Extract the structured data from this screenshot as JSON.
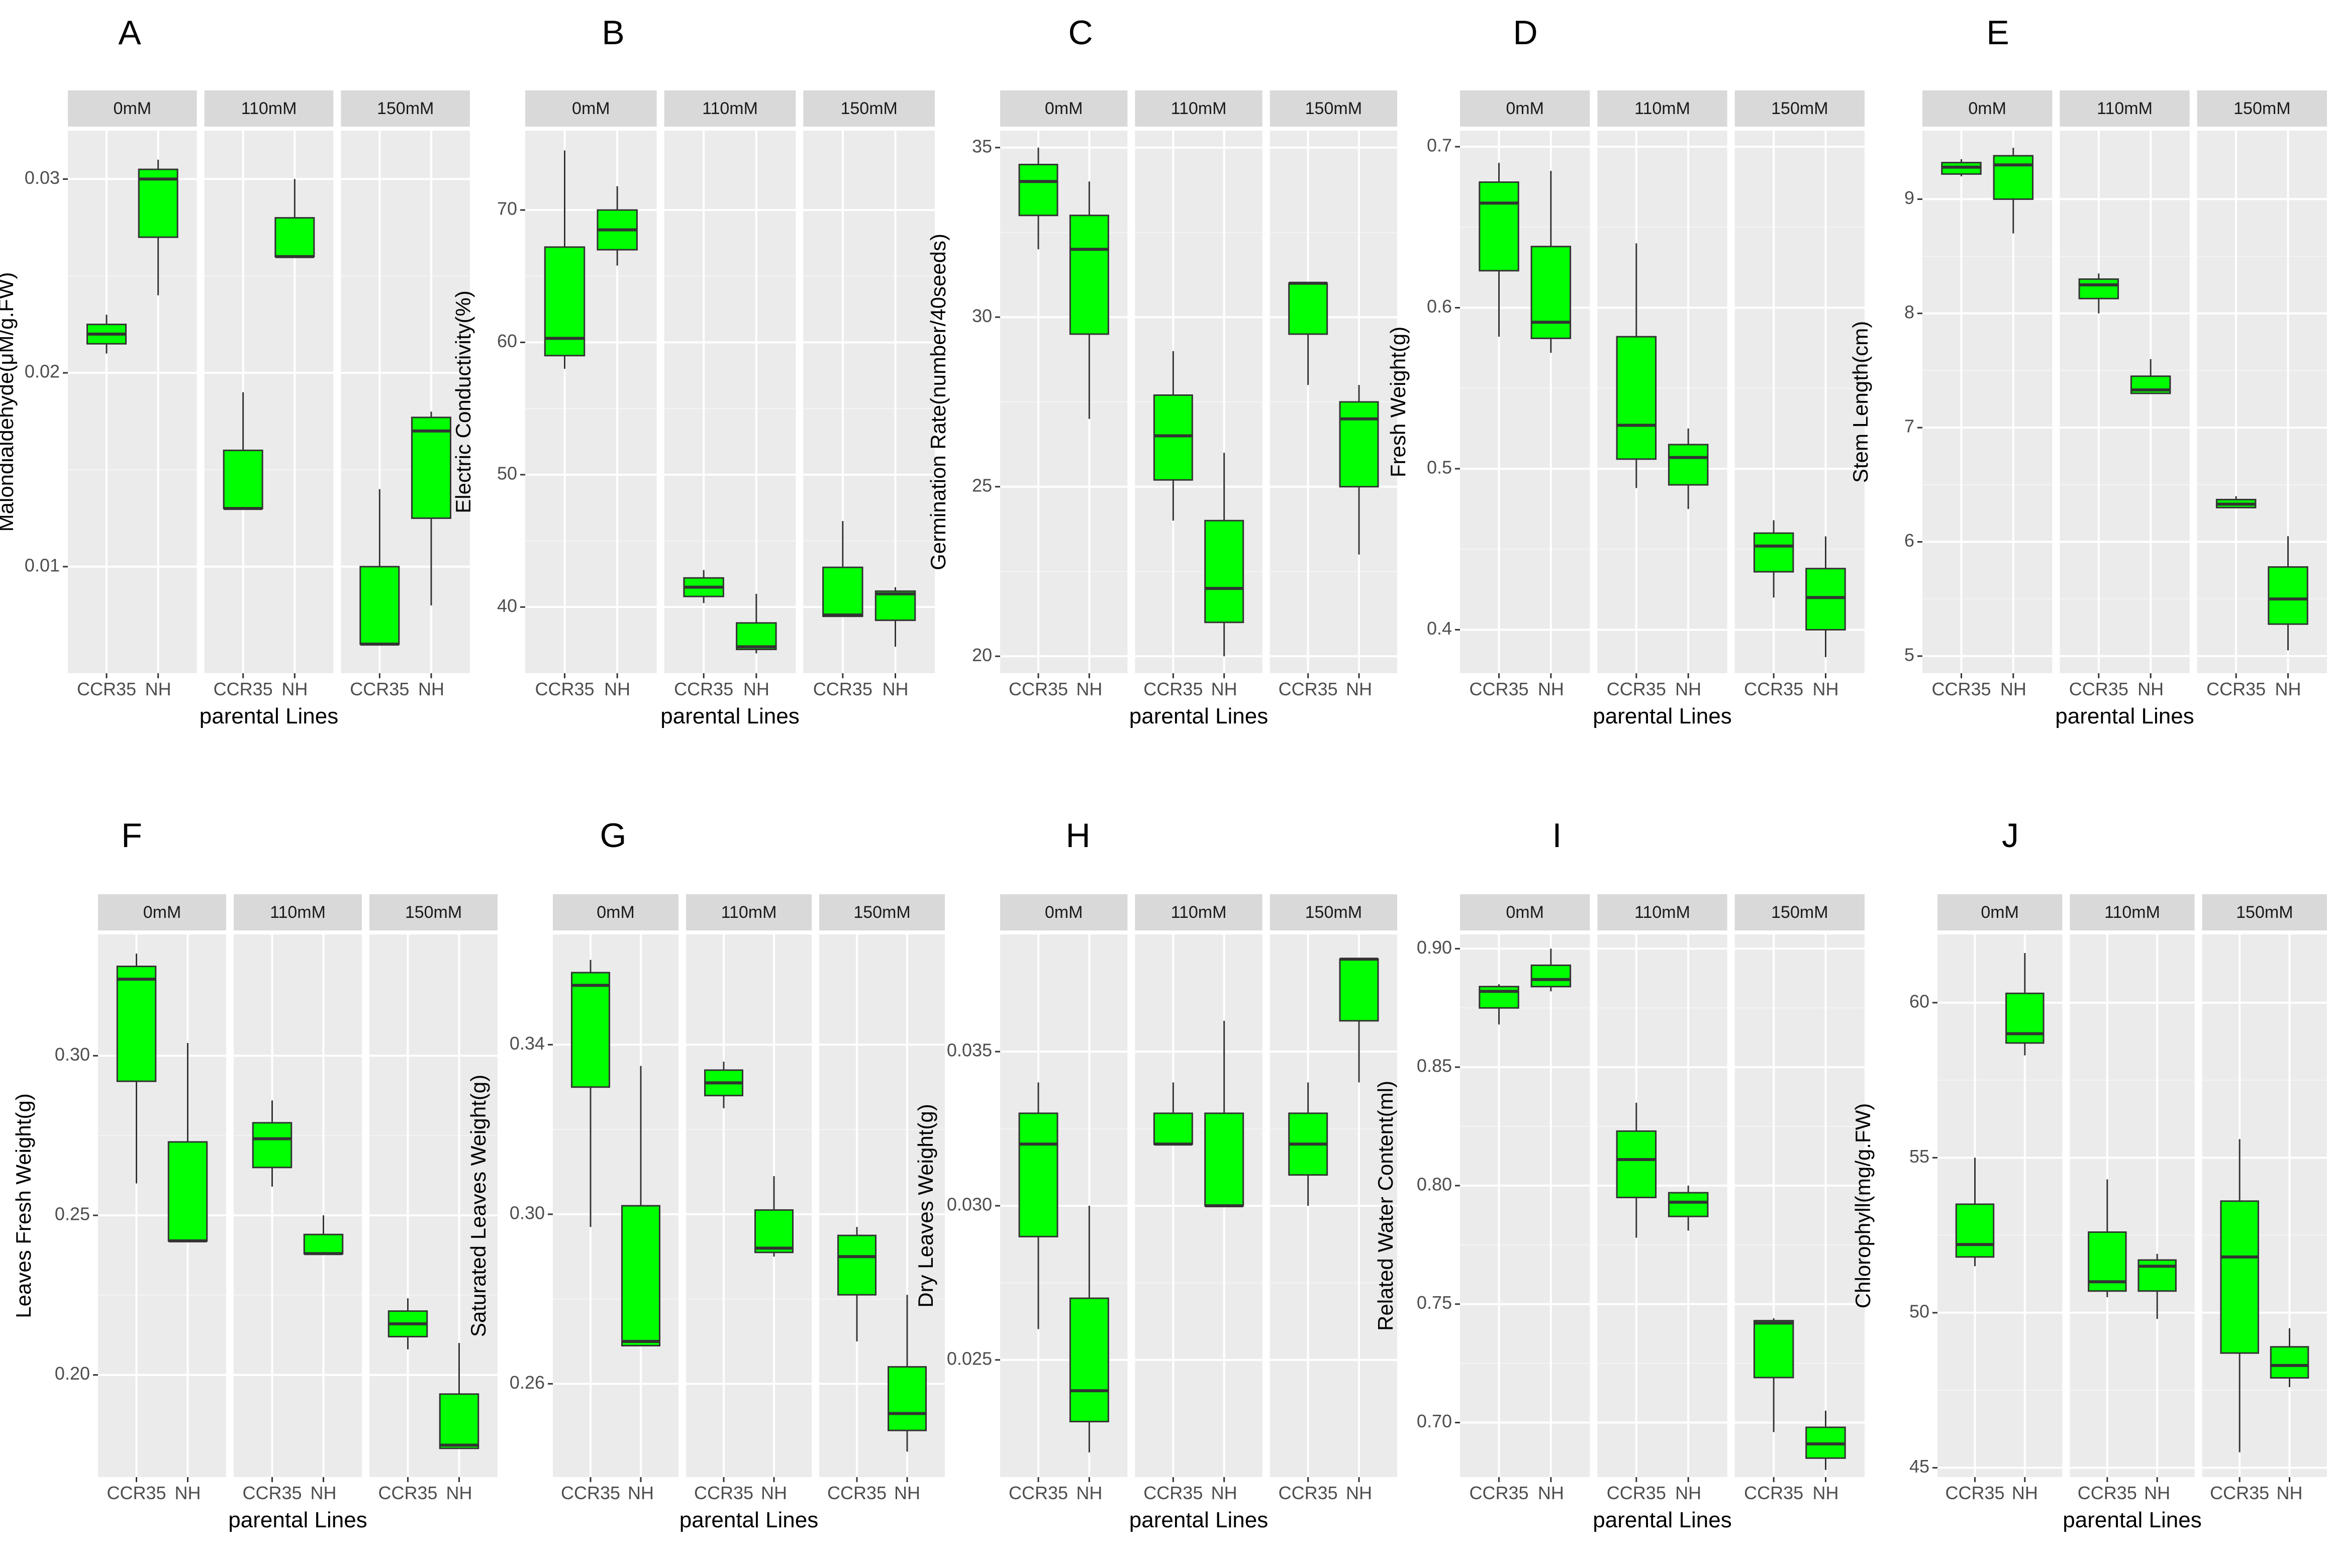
{
  "colors": {
    "panel_bg": "#ebebeb",
    "strip_bg": "#d9d9d9",
    "grid_major": "#ffffff",
    "grid_minor": "#f4f4f4",
    "box_fill": "#00ff00",
    "line": "#333333",
    "tick_text": "#4d4d4d",
    "strip_text": "#1a1a1a"
  },
  "chart_data": [
    {
      "letter": "A",
      "type": "box",
      "ylabel": "Malondialdehyde(μM/g.FW)",
      "xlabel": "parental Lines",
      "facets": [
        "0mM",
        "110mM",
        "150mM"
      ],
      "categories": [
        "CCR35",
        "NH"
      ],
      "ylim": [
        0.0045,
        0.0325
      ],
      "yticks": [
        0.01,
        0.02,
        0.03
      ],
      "ytick_labels": [
        "0.01",
        "0.02",
        "0.03"
      ],
      "boxes": [
        [
          {
            "min": 0.021,
            "q1": 0.0215,
            "median": 0.022,
            "q3": 0.0225,
            "max": 0.023
          },
          {
            "min": 0.024,
            "q1": 0.027,
            "median": 0.03,
            "q3": 0.0305,
            "max": 0.031
          }
        ],
        [
          {
            "min": 0.013,
            "q1": 0.013,
            "median": 0.013,
            "q3": 0.016,
            "max": 0.019
          },
          {
            "min": 0.026,
            "q1": 0.026,
            "median": 0.026,
            "q3": 0.028,
            "max": 0.03
          }
        ],
        [
          {
            "min": 0.006,
            "q1": 0.006,
            "median": 0.006,
            "q3": 0.01,
            "max": 0.014
          },
          {
            "min": 0.008,
            "q1": 0.0125,
            "median": 0.017,
            "q3": 0.0177,
            "max": 0.018
          }
        ]
      ]
    },
    {
      "letter": "B",
      "type": "box",
      "ylabel": "Electric Conductivity(%)",
      "xlabel": "parental Lines",
      "facets": [
        "0mM",
        "110mM",
        "150mM"
      ],
      "categories": [
        "CCR35",
        "NH"
      ],
      "ylim": [
        35,
        76
      ],
      "yticks": [
        40,
        50,
        60,
        70
      ],
      "ytick_labels": [
        "40",
        "50",
        "60",
        "70"
      ],
      "boxes": [
        [
          {
            "min": 58,
            "q1": 59,
            "median": 60.3,
            "q3": 67.2,
            "max": 74.5
          },
          {
            "min": 65.8,
            "q1": 67,
            "median": 68.5,
            "q3": 70,
            "max": 71.8
          }
        ],
        [
          {
            "min": 40.3,
            "q1": 40.8,
            "median": 41.5,
            "q3": 42.2,
            "max": 42.8
          },
          {
            "min": 36.5,
            "q1": 36.8,
            "median": 37,
            "q3": 38.8,
            "max": 41
          }
        ],
        [
          {
            "min": 39.3,
            "q1": 39.3,
            "median": 39.4,
            "q3": 43,
            "max": 46.5
          },
          {
            "min": 37,
            "q1": 39,
            "median": 41,
            "q3": 41.2,
            "max": 41.5
          }
        ]
      ]
    },
    {
      "letter": "C",
      "type": "box",
      "ylabel": "Germination Rate(number/40seeds)",
      "xlabel": "parental Lines",
      "facets": [
        "0mM",
        "110mM",
        "150mM"
      ],
      "categories": [
        "CCR35",
        "NH"
      ],
      "ylim": [
        19.5,
        35.5
      ],
      "yticks": [
        20,
        25,
        30,
        35
      ],
      "ytick_labels": [
        "20",
        "25",
        "30",
        "35"
      ],
      "boxes": [
        [
          {
            "min": 32,
            "q1": 33,
            "median": 34,
            "q3": 34.5,
            "max": 35
          },
          {
            "min": 27,
            "q1": 29.5,
            "median": 32,
            "q3": 33,
            "max": 34
          }
        ],
        [
          {
            "min": 24,
            "q1": 25.2,
            "median": 26.5,
            "q3": 27.7,
            "max": 29
          },
          {
            "min": 20,
            "q1": 21,
            "median": 22,
            "q3": 24,
            "max": 26
          }
        ],
        [
          {
            "min": 28,
            "q1": 29.5,
            "median": 31,
            "q3": 31,
            "max": 31
          },
          {
            "min": 23,
            "q1": 25,
            "median": 27,
            "q3": 27.5,
            "max": 28
          }
        ]
      ]
    },
    {
      "letter": "D",
      "type": "box",
      "ylabel": "Fresh Weight(g)",
      "xlabel": "parental Lines",
      "facets": [
        "0mM",
        "110mM",
        "150mM"
      ],
      "categories": [
        "CCR35",
        "NH"
      ],
      "ylim": [
        0.373,
        0.71
      ],
      "yticks": [
        0.4,
        0.5,
        0.6,
        0.7
      ],
      "ytick_labels": [
        "0.4",
        "0.5",
        "0.6",
        "0.7"
      ],
      "boxes": [
        [
          {
            "min": 0.582,
            "q1": 0.623,
            "median": 0.665,
            "q3": 0.678,
            "max": 0.69
          },
          {
            "min": 0.572,
            "q1": 0.581,
            "median": 0.591,
            "q3": 0.638,
            "max": 0.685
          }
        ],
        [
          {
            "min": 0.488,
            "q1": 0.506,
            "median": 0.527,
            "q3": 0.582,
            "max": 0.64
          },
          {
            "min": 0.475,
            "q1": 0.49,
            "median": 0.507,
            "q3": 0.515,
            "max": 0.525
          }
        ],
        [
          {
            "min": 0.42,
            "q1": 0.436,
            "median": 0.452,
            "q3": 0.46,
            "max": 0.468
          },
          {
            "min": 0.383,
            "q1": 0.4,
            "median": 0.42,
            "q3": 0.438,
            "max": 0.458
          }
        ]
      ]
    },
    {
      "letter": "E",
      "type": "box",
      "ylabel": "Stem Length(cm)",
      "xlabel": "parental Lines",
      "facets": [
        "0mM",
        "110mM",
        "150mM"
      ],
      "categories": [
        "CCR35",
        "NH"
      ],
      "ylim": [
        4.85,
        9.6
      ],
      "yticks": [
        5,
        6,
        7,
        8,
        9
      ],
      "ytick_labels": [
        "5",
        "6",
        "7",
        "8",
        "9"
      ],
      "boxes": [
        [
          {
            "min": 9.2,
            "q1": 9.22,
            "median": 9.28,
            "q3": 9.32,
            "max": 9.35
          },
          {
            "min": 8.7,
            "q1": 9,
            "median": 9.3,
            "q3": 9.38,
            "max": 9.45
          }
        ],
        [
          {
            "min": 8,
            "q1": 8.13,
            "median": 8.25,
            "q3": 8.3,
            "max": 8.35
          },
          {
            "min": 7.3,
            "q1": 7.3,
            "median": 7.33,
            "q3": 7.45,
            "max": 7.6
          }
        ],
        [
          {
            "min": 6.3,
            "q1": 6.3,
            "median": 6.33,
            "q3": 6.37,
            "max": 6.4
          },
          {
            "min": 5.05,
            "q1": 5.28,
            "median": 5.5,
            "q3": 5.78,
            "max": 6.05
          }
        ]
      ]
    },
    {
      "letter": "F",
      "type": "box",
      "ylabel": "Leaves Fresh Weight(g)",
      "xlabel": "parental Lines",
      "facets": [
        "0mM",
        "110mM",
        "150mM"
      ],
      "categories": [
        "CCR35",
        "NH"
      ],
      "ylim": [
        0.168,
        0.338
      ],
      "yticks": [
        0.2,
        0.25,
        0.3
      ],
      "ytick_labels": [
        "0.20",
        "0.25",
        "0.30"
      ],
      "boxes": [
        [
          {
            "min": 0.26,
            "q1": 0.292,
            "median": 0.324,
            "q3": 0.328,
            "max": 0.332
          },
          {
            "min": 0.242,
            "q1": 0.242,
            "median": 0.242,
            "q3": 0.273,
            "max": 0.304
          }
        ],
        [
          {
            "min": 0.259,
            "q1": 0.265,
            "median": 0.274,
            "q3": 0.279,
            "max": 0.286
          },
          {
            "min": 0.238,
            "q1": 0.238,
            "median": 0.238,
            "q3": 0.244,
            "max": 0.25
          }
        ],
        [
          {
            "min": 0.208,
            "q1": 0.212,
            "median": 0.216,
            "q3": 0.22,
            "max": 0.224
          },
          {
            "min": 0.177,
            "q1": 0.177,
            "median": 0.178,
            "q3": 0.194,
            "max": 0.21
          }
        ]
      ]
    },
    {
      "letter": "G",
      "type": "box",
      "ylabel": "Saturated Leaves Weight(g)",
      "xlabel": "parental Lines",
      "facets": [
        "0mM",
        "110mM",
        "150mM"
      ],
      "categories": [
        "CCR35",
        "NH"
      ],
      "ylim": [
        0.238,
        0.366
      ],
      "yticks": [
        0.26,
        0.3,
        0.34
      ],
      "ytick_labels": [
        "0.26",
        "0.30",
        "0.34"
      ],
      "boxes": [
        [
          {
            "min": 0.297,
            "q1": 0.33,
            "median": 0.354,
            "q3": 0.357,
            "max": 0.36
          },
          {
            "min": 0.269,
            "q1": 0.269,
            "median": 0.27,
            "q3": 0.302,
            "max": 0.335
          }
        ],
        [
          {
            "min": 0.325,
            "q1": 0.328,
            "median": 0.331,
            "q3": 0.334,
            "max": 0.336
          },
          {
            "min": 0.29,
            "q1": 0.291,
            "median": 0.292,
            "q3": 0.301,
            "max": 0.309
          }
        ],
        [
          {
            "min": 0.27,
            "q1": 0.281,
            "median": 0.29,
            "q3": 0.295,
            "max": 0.297
          },
          {
            "min": 0.244,
            "q1": 0.249,
            "median": 0.253,
            "q3": 0.264,
            "max": 0.281
          }
        ]
      ]
    },
    {
      "letter": "H",
      "type": "box",
      "ylabel": "Dry Leaves Weight(g)",
      "xlabel": "parental Lines",
      "facets": [
        "0mM",
        "110mM",
        "150mM"
      ],
      "categories": [
        "CCR35",
        "NH"
      ],
      "ylim": [
        0.0212,
        0.0388
      ],
      "yticks": [
        0.025,
        0.03,
        0.035
      ],
      "ytick_labels": [
        "0.025",
        "0.030",
        "0.035"
      ],
      "boxes": [
        [
          {
            "min": 0.026,
            "q1": 0.029,
            "median": 0.032,
            "q3": 0.033,
            "max": 0.034
          },
          {
            "min": 0.022,
            "q1": 0.023,
            "median": 0.024,
            "q3": 0.027,
            "max": 0.03
          }
        ],
        [
          {
            "min": 0.032,
            "q1": 0.032,
            "median": 0.032,
            "q3": 0.033,
            "max": 0.034
          },
          {
            "min": 0.03,
            "q1": 0.03,
            "median": 0.03,
            "q3": 0.033,
            "max": 0.036
          }
        ],
        [
          {
            "min": 0.03,
            "q1": 0.031,
            "median": 0.032,
            "q3": 0.033,
            "max": 0.034
          },
          {
            "min": 0.034,
            "q1": 0.036,
            "median": 0.038,
            "q3": 0.038,
            "max": 0.038
          }
        ]
      ]
    },
    {
      "letter": "I",
      "type": "box",
      "ylabel": "Related Water Content(ml)",
      "xlabel": "parental Lines",
      "facets": [
        "0mM",
        "110mM",
        "150mM"
      ],
      "categories": [
        "CCR35",
        "NH"
      ],
      "ylim": [
        0.677,
        0.906
      ],
      "yticks": [
        0.7,
        0.75,
        0.8,
        0.85,
        0.9
      ],
      "ytick_labels": [
        "0.70",
        "0.75",
        "0.80",
        "0.85",
        "0.90"
      ],
      "boxes": [
        [
          {
            "min": 0.868,
            "q1": 0.875,
            "median": 0.882,
            "q3": 0.884,
            "max": 0.885
          },
          {
            "min": 0.882,
            "q1": 0.884,
            "median": 0.887,
            "q3": 0.893,
            "max": 0.9
          }
        ],
        [
          {
            "min": 0.778,
            "q1": 0.795,
            "median": 0.811,
            "q3": 0.823,
            "max": 0.835
          },
          {
            "min": 0.781,
            "q1": 0.787,
            "median": 0.793,
            "q3": 0.797,
            "max": 0.8
          }
        ],
        [
          {
            "min": 0.696,
            "q1": 0.719,
            "median": 0.742,
            "q3": 0.743,
            "max": 0.744
          },
          {
            "min": 0.68,
            "q1": 0.685,
            "median": 0.691,
            "q3": 0.698,
            "max": 0.705
          }
        ]
      ]
    },
    {
      "letter": "J",
      "type": "box",
      "ylabel": "Chlorophyll(mg/g.FW)",
      "xlabel": "parental Lines",
      "facets": [
        "0mM",
        "110mM",
        "150mM"
      ],
      "categories": [
        "CCR35",
        "NH"
      ],
      "ylim": [
        44.7,
        62.2
      ],
      "yticks": [
        45,
        50,
        55,
        60
      ],
      "ytick_labels": [
        "45",
        "50",
        "55",
        "60"
      ],
      "boxes": [
        [
          {
            "min": 51.5,
            "q1": 51.8,
            "median": 52.2,
            "q3": 53.5,
            "max": 55
          },
          {
            "min": 58.3,
            "q1": 58.7,
            "median": 59,
            "q3": 60.3,
            "max": 61.6
          }
        ],
        [
          {
            "min": 50.5,
            "q1": 50.7,
            "median": 51,
            "q3": 52.6,
            "max": 54.3
          },
          {
            "min": 49.8,
            "q1": 50.7,
            "median": 51.5,
            "q3": 51.7,
            "max": 51.9
          }
        ],
        [
          {
            "min": 45.5,
            "q1": 48.7,
            "median": 51.8,
            "q3": 53.6,
            "max": 55.6
          },
          {
            "min": 47.6,
            "q1": 47.9,
            "median": 48.3,
            "q3": 48.9,
            "max": 49.5
          }
        ]
      ]
    }
  ]
}
